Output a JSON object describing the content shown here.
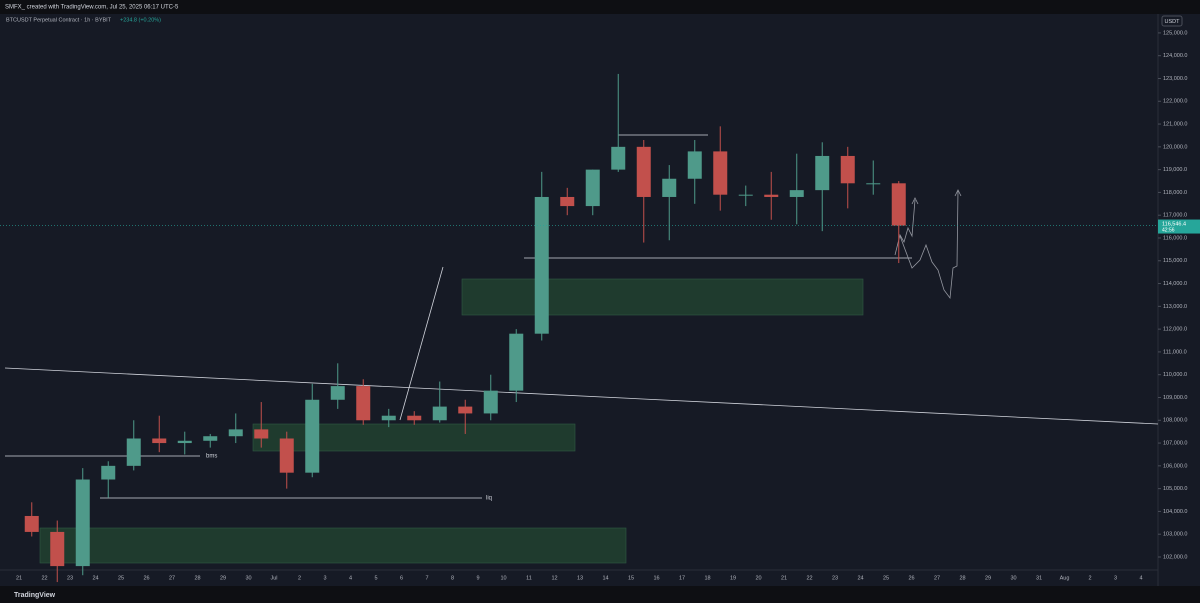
{
  "header": "SMFX_ created with TradingView.com, Jul 25, 2025 06:17 UTC-5",
  "footer": "TradingView",
  "chart_data": {
    "type": "candlestick",
    "title": "BTCUSDT Perpetual Contract · 1h · BYBIT",
    "subtitle": "+234.8 (+0.20%)",
    "y_axis_label": "USDT",
    "categories": [
      "21",
      "22",
      "23",
      "24",
      "25",
      "26",
      "27",
      "28",
      "29",
      "30",
      "Jul",
      "2",
      "3",
      "4",
      "5",
      "6",
      "7",
      "8",
      "9",
      "10",
      "11",
      "12",
      "13",
      "14",
      "15",
      "16",
      "17",
      "18",
      "19",
      "20",
      "21",
      "22",
      "23",
      "24",
      "25",
      "26",
      "27",
      "28",
      "29",
      "30",
      "31",
      "Aug",
      "2",
      "3",
      "4"
    ],
    "open": [
      103800,
      103100,
      101600,
      105400,
      106000,
      107200,
      107000,
      107100,
      107300,
      107600,
      107200,
      105700,
      108900,
      109500,
      108000,
      108200,
      108000,
      108600,
      108300,
      109300,
      111800,
      117800,
      117400,
      119000,
      120000,
      117800,
      118600,
      119800,
      117900,
      117900,
      117800,
      118100,
      119600,
      118400,
      118400,
      null,
      null,
      null,
      null,
      null,
      null,
      null,
      null,
      null,
      null
    ],
    "high": [
      104400,
      103600,
      105900,
      106200,
      108000,
      108200,
      107500,
      107400,
      108300,
      108800,
      107500,
      109600,
      110500,
      109800,
      108500,
      108400,
      109700,
      108900,
      110000,
      112000,
      118900,
      118200,
      119000,
      123200,
      120300,
      119200,
      120300,
      120900,
      118300,
      118900,
      119700,
      120200,
      120000,
      119400,
      118500,
      null,
      null,
      null,
      null,
      null,
      null,
      null,
      null,
      null,
      null
    ],
    "low": [
      102900,
      100900,
      101200,
      104600,
      105800,
      106600,
      106500,
      106800,
      107000,
      106800,
      105000,
      105500,
      108500,
      107800,
      107700,
      107800,
      107900,
      107400,
      108000,
      108800,
      111500,
      117000,
      117000,
      118900,
      115800,
      115900,
      117500,
      117200,
      117400,
      116800,
      116600,
      116300,
      117300,
      117900,
      114900,
      null,
      null,
      null,
      null,
      null,
      null,
      null,
      null,
      null,
      null
    ],
    "close": [
      103100,
      101600,
      105400,
      106000,
      107200,
      107000,
      107100,
      107300,
      107600,
      107200,
      105700,
      108900,
      109500,
      108000,
      108200,
      108000,
      108600,
      108300,
      109300,
      111800,
      117800,
      117400,
      119000,
      120000,
      117800,
      118600,
      119800,
      117900,
      117900,
      117800,
      118100,
      119600,
      118400,
      118400,
      116546.4,
      null,
      null,
      null,
      null,
      null,
      null,
      null,
      null,
      null,
      null
    ],
    "up_color": "#4f9a8a",
    "down_color": "#c2504c",
    "ylim": [
      100990,
      125830
    ],
    "yticks": [
      {
        "value": 102000,
        "label": "102,000.0"
      },
      {
        "value": 103000,
        "label": "103,000.0"
      },
      {
        "value": 104000,
        "label": "104,000.0"
      },
      {
        "value": 105000,
        "label": "105,000.0"
      },
      {
        "value": 106000,
        "label": "106,000.0"
      },
      {
        "value": 107000,
        "label": "107,000.0"
      },
      {
        "value": 108000,
        "label": "108,000.0"
      },
      {
        "value": 109000,
        "label": "109,000.0"
      },
      {
        "value": 110000,
        "label": "110,000.0"
      },
      {
        "value": 111000,
        "label": "111,000.0"
      },
      {
        "value": 112000,
        "label": "112,000.0"
      },
      {
        "value": 113000,
        "label": "113,000.0"
      },
      {
        "value": 114000,
        "label": "114,000.0"
      },
      {
        "value": 115000,
        "label": "115,000.0"
      },
      {
        "value": 116000,
        "label": "116,000.0"
      },
      {
        "value": 117000,
        "label": "117,000.0"
      },
      {
        "value": 118000,
        "label": "118,000.0"
      },
      {
        "value": 119000,
        "label": "119,000.0"
      },
      {
        "value": 120000,
        "label": "120,000.0"
      },
      {
        "value": 121000,
        "label": "121,000.0"
      },
      {
        "value": 122000,
        "label": "122,000.0"
      },
      {
        "value": 123000,
        "label": "123,000.0"
      },
      {
        "value": 124000,
        "label": "124,000.0"
      },
      {
        "value": 125000,
        "label": "125,000.0"
      }
    ],
    "last_price": {
      "value": 116546.4,
      "label": "116,546.4"
    },
    "countdown": "42:56",
    "annotations": [
      "bms",
      "liq"
    ]
  }
}
